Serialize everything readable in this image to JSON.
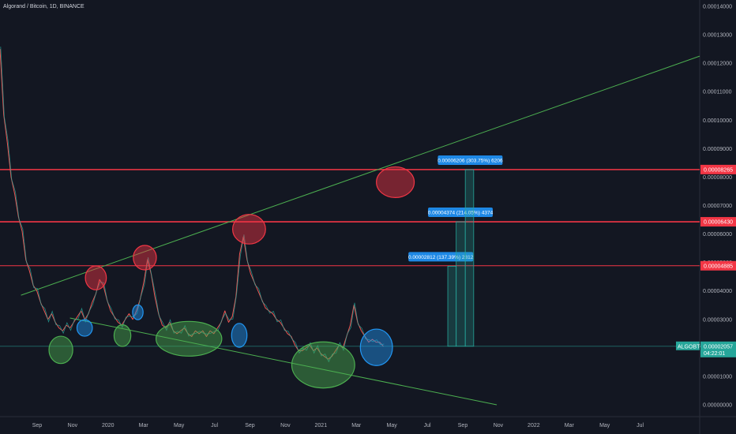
{
  "header": {
    "title": "Algorand / Bitcoin, 1D, BINANCE"
  },
  "chart_data": {
    "type": "line",
    "symbol": "ALGOBTC",
    "title": "Algorand / Bitcoin, 1D, BINANCE",
    "ylim": [
      0.0,
      0.00014
    ],
    "y_ticks": [
      "0.00014000",
      "0.00013000",
      "0.00012000",
      "0.00011000",
      "0.00010000",
      "0.00009000",
      "0.00008000",
      "0.00007000",
      "0.00006000",
      "0.00005000",
      "0.00004000",
      "0.00003000",
      "0.00002000",
      "0.00001000",
      "0.00000000"
    ],
    "x_ticks": [
      "Sep",
      "Nov",
      "2020",
      "Mar",
      "May",
      "Jul",
      "Sep",
      "Nov",
      "2021",
      "Mar",
      "May",
      "Jul",
      "Sep",
      "Nov",
      "2022",
      "Mar",
      "May",
      "Jul"
    ],
    "series": [
      {
        "values": [
          0.000125,
          0.000102,
          9.2e-05,
          8e-05,
          7.4e-05,
          6.6e-05,
          6.1e-05,
          5.1e-05,
          4.7e-05,
          4.2e-05,
          4e-05,
          3.6e-05,
          3.3e-05,
          3e-05,
          3.2e-05,
          2.9e-05,
          2.7e-05,
          2.6e-05,
          2.8e-05,
          2.7e-05,
          2.9e-05,
          3.1e-05,
          3.3e-05,
          3e-05,
          3.2e-05,
          3.6e-05,
          3.9e-05,
          4.4e-05,
          4.2e-05,
          3.7e-05,
          3.3e-05,
          3.1e-05,
          2.9e-05,
          2.8e-05,
          3e-05,
          3.2e-05,
          3e-05,
          3.3e-05,
          3.7e-05,
          4.3e-05,
          5.1e-05,
          4.6e-05,
          3.8e-05,
          3.2e-05,
          2.8e-05,
          2.7e-05,
          2.9e-05,
          2.6e-05,
          2.5e-05,
          2.6e-05,
          2.7e-05,
          2.5e-05,
          2.4e-05,
          2.6e-05,
          2.5e-05,
          2.6e-05,
          2.4e-05,
          2.6e-05,
          2.5e-05,
          2.7e-05,
          2.9e-05,
          3.3e-05,
          2.9e-05,
          3.1e-05,
          3.8e-05,
          5.3e-05,
          5.9e-05,
          5.1e-05,
          4.6e-05,
          4.3e-05,
          4e-05,
          3.7e-05,
          3.4e-05,
          3.3e-05,
          3.2e-05,
          3e-05,
          2.9e-05,
          2.7e-05,
          2.5e-05,
          2.4e-05,
          2.1e-05,
          1.9e-05,
          1.9e-05,
          2e-05,
          2.1e-05,
          1.9e-05,
          2e-05,
          1.8e-05,
          1.7e-05,
          1.6e-05,
          1.7e-05,
          1.9e-05,
          2.1e-05,
          2e-05,
          2.4e-05,
          2.8e-05,
          3.5e-05,
          2.9e-05,
          2.6e-05,
          2.4e-05,
          2.2e-05,
          2.3e-05,
          2.2e-05,
          2.2e-05,
          2.05e-05
        ]
      }
    ],
    "levels": [
      {
        "label": "0.00008265",
        "value": 8.265e-05,
        "color": "#f23645"
      },
      {
        "label": "0.00006430",
        "value": 6.43e-05,
        "color": "#f23645"
      },
      {
        "label": "0.00004885",
        "value": 4.885e-05,
        "color": "#f23645"
      }
    ],
    "price_label": "0.00002057",
    "countdown": "04:22:01",
    "measurements": [
      {
        "text": "0.00002812 (137.39%) 2812",
        "from": 2.057e-05,
        "to": 4.869e-05
      },
      {
        "text": "0.00004374 (214.05%) 4374",
        "from": 2.057e-05,
        "to": 6.431e-05
      },
      {
        "text": "0.00006206 (303.75%) 6206",
        "from": 2.057e-05,
        "to": 8.263e-05
      }
    ],
    "trendlines": [
      {
        "color": "#4caf50",
        "points": [
          [
            0.03,
            3.85e-05
          ],
          [
            1.0,
            0.0001225
          ]
        ]
      },
      {
        "color": "#4caf50",
        "points": [
          [
            0.1,
            3.05e-05
          ],
          [
            0.71,
            0.0
          ]
        ]
      }
    ],
    "annotations": [
      {
        "shape": "ellipse",
        "color": "#4caf50",
        "cx": 0.087,
        "cy": 1.93e-05,
        "rx": 0.017,
        "ry": 4.8e-06
      },
      {
        "shape": "ellipse",
        "color": "#4caf50",
        "cx": 0.175,
        "cy": 2.43e-05,
        "rx": 0.012,
        "ry": 3.8e-06
      },
      {
        "shape": "ellipse",
        "color": "#4caf50",
        "cx": 0.27,
        "cy": 2.32e-05,
        "rx": 0.047,
        "ry": 6.1e-06
      },
      {
        "shape": "ellipse",
        "color": "#4caf50",
        "cx": 0.462,
        "cy": 1.4e-05,
        "rx": 0.045,
        "ry": 8.1e-06
      },
      {
        "shape": "ellipse",
        "color": "#2196f3",
        "cx": 0.121,
        "cy": 2.7e-05,
        "rx": 0.011,
        "ry": 2.9e-06
      },
      {
        "shape": "ellipse",
        "color": "#2196f3",
        "cx": 0.197,
        "cy": 3.25e-05,
        "rx": 0.0075,
        "ry": 2.6e-06
      },
      {
        "shape": "ellipse",
        "color": "#2196f3",
        "cx": 0.342,
        "cy": 2.44e-05,
        "rx": 0.011,
        "ry": 4.2e-06
      },
      {
        "shape": "ellipse",
        "color": "#2196f3",
        "cx": 0.538,
        "cy": 2.02e-05,
        "rx": 0.023,
        "ry": 6.4e-06
      },
      {
        "shape": "ellipse",
        "color": "#f23645",
        "cx": 0.137,
        "cy": 4.46e-05,
        "rx": 0.015,
        "ry": 4.2e-06
      },
      {
        "shape": "ellipse",
        "color": "#f23645",
        "cx": 0.207,
        "cy": 5.17e-05,
        "rx": 0.0165,
        "ry": 4.3e-06
      },
      {
        "shape": "ellipse",
        "color": "#f23645",
        "cx": 0.356,
        "cy": 6.17e-05,
        "rx": 0.0235,
        "ry": 5.2e-06
      },
      {
        "shape": "ellipse",
        "color": "#f23645",
        "cx": 0.565,
        "cy": 7.82e-05,
        "rx": 0.027,
        "ry": 5.4e-06
      }
    ]
  }
}
